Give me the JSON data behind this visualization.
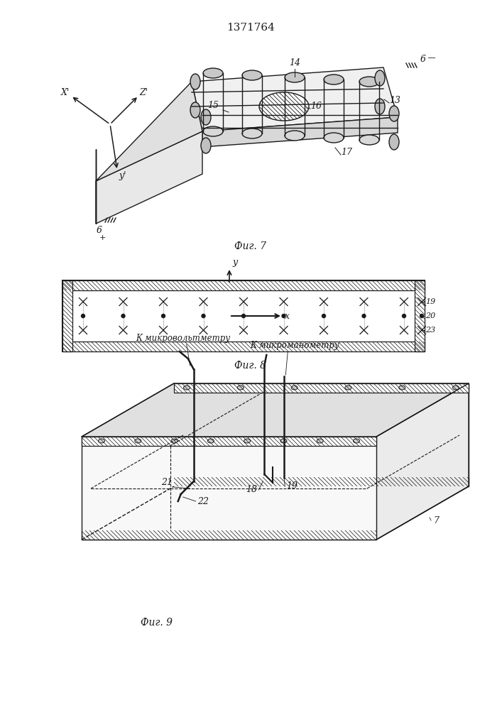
{
  "patent_number": "1371764",
  "fig7_caption": "Фиг. 7",
  "fig8_caption": "Фиг. 8",
  "fig9_caption": "Фиг. 9",
  "label_microvolt": "К микровольтметру",
  "label_microman": "К микроманометру",
  "bg_color": "#ffffff",
  "line_color": "#1a1a1a"
}
